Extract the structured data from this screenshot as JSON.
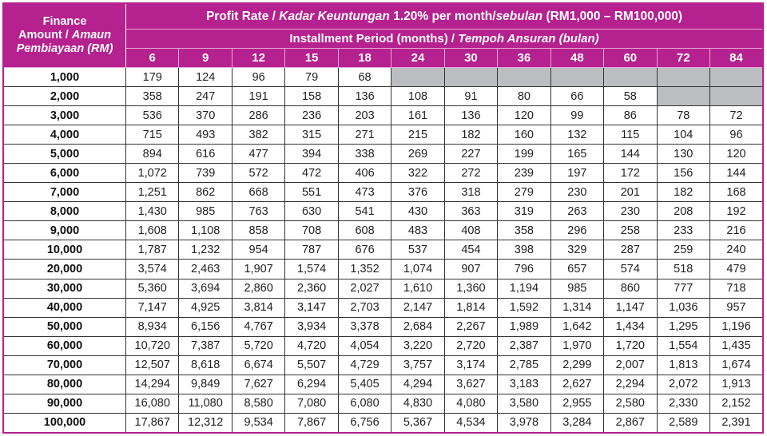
{
  "header": {
    "amount_label": [
      "Finance",
      "Amount / ",
      "Amaun Pembiayaan (RM)"
    ],
    "title_parts": [
      "Profit Rate / ",
      "Kadar Keuntungan",
      " 1.20% per month/",
      "sebulan",
      " (RM1,000 – RM100,000)"
    ],
    "period_parts": [
      "Installment Period (months) / ",
      "Tempoh Ansuran (bulan)"
    ],
    "periods": [
      "6",
      "9",
      "12",
      "15",
      "18",
      "24",
      "30",
      "36",
      "48",
      "60",
      "72",
      "84"
    ]
  },
  "accent_color": "#b5218e",
  "rows": [
    {
      "amount": "1,000",
      "values": [
        "179",
        "124",
        "96",
        "79",
        "68",
        "",
        "",
        "",
        "",
        "",
        "",
        ""
      ]
    },
    {
      "amount": "2,000",
      "values": [
        "358",
        "247",
        "191",
        "158",
        "136",
        "108",
        "91",
        "80",
        "66",
        "58",
        "",
        ""
      ]
    },
    {
      "amount": "3,000",
      "values": [
        "536",
        "370",
        "286",
        "236",
        "203",
        "161",
        "136",
        "120",
        "99",
        "86",
        "78",
        "72"
      ]
    },
    {
      "amount": "4,000",
      "values": [
        "715",
        "493",
        "382",
        "315",
        "271",
        "215",
        "182",
        "160",
        "132",
        "115",
        "104",
        "96"
      ]
    },
    {
      "amount": "5,000",
      "values": [
        "894",
        "616",
        "477",
        "394",
        "338",
        "269",
        "227",
        "199",
        "165",
        "144",
        "130",
        "120"
      ]
    },
    {
      "amount": "6,000",
      "values": [
        "1,072",
        "739",
        "572",
        "472",
        "406",
        "322",
        "272",
        "239",
        "197",
        "172",
        "156",
        "144"
      ]
    },
    {
      "amount": "7,000",
      "values": [
        "1,251",
        "862",
        "668",
        "551",
        "473",
        "376",
        "318",
        "279",
        "230",
        "201",
        "182",
        "168"
      ]
    },
    {
      "amount": "8,000",
      "values": [
        "1,430",
        "985",
        "763",
        "630",
        "541",
        "430",
        "363",
        "319",
        "263",
        "230",
        "208",
        "192"
      ]
    },
    {
      "amount": "9,000",
      "values": [
        "1,608",
        "1,108",
        "858",
        "708",
        "608",
        "483",
        "408",
        "358",
        "296",
        "258",
        "233",
        "216"
      ]
    },
    {
      "amount": "10,000",
      "values": [
        "1,787",
        "1,232",
        "954",
        "787",
        "676",
        "537",
        "454",
        "398",
        "329",
        "287",
        "259",
        "240"
      ]
    },
    {
      "amount": "20,000",
      "values": [
        "3,574",
        "2,463",
        "1,907",
        "1,574",
        "1,352",
        "1,074",
        "907",
        "796",
        "657",
        "574",
        "518",
        "479"
      ]
    },
    {
      "amount": "30,000",
      "values": [
        "5,360",
        "3,694",
        "2,860",
        "2,360",
        "2,027",
        "1,610",
        "1,360",
        "1,194",
        "985",
        "860",
        "777",
        "718"
      ]
    },
    {
      "amount": "40,000",
      "values": [
        "7,147",
        "4,925",
        "3,814",
        "3,147",
        "2,703",
        "2,147",
        "1,814",
        "1,592",
        "1,314",
        "1,147",
        "1,036",
        "957"
      ]
    },
    {
      "amount": "50,000",
      "values": [
        "8,934",
        "6,156",
        "4,767",
        "3,934",
        "3,378",
        "2,684",
        "2,267",
        "1,989",
        "1,642",
        "1,434",
        "1,295",
        "1,196"
      ]
    },
    {
      "amount": "60,000",
      "values": [
        "10,720",
        "7,387",
        "5,720",
        "4,720",
        "4,054",
        "3,220",
        "2,720",
        "2,387",
        "1,970",
        "1,720",
        "1,554",
        "1,435"
      ]
    },
    {
      "amount": "70,000",
      "values": [
        "12,507",
        "8,618",
        "6,674",
        "5,507",
        "4,729",
        "3,757",
        "3,174",
        "2,785",
        "2,299",
        "2,007",
        "1,813",
        "1,674"
      ]
    },
    {
      "amount": "80,000",
      "values": [
        "14,294",
        "9,849",
        "7,627",
        "6,294",
        "5,405",
        "4,294",
        "3,627",
        "3,183",
        "2,627",
        "2,294",
        "2,072",
        "1,913"
      ]
    },
    {
      "amount": "90,000",
      "values": [
        "16,080",
        "11,080",
        "8,580",
        "7,080",
        "6,080",
        "4,830",
        "4,080",
        "3,580",
        "2,955",
        "2,580",
        "2,330",
        "2,152"
      ]
    },
    {
      "amount": "100,000",
      "values": [
        "17,867",
        "12,312",
        "9,534",
        "7,867",
        "6,756",
        "5,367",
        "4,534",
        "3,978",
        "3,284",
        "2,867",
        "2,589",
        "2,391"
      ]
    }
  ]
}
